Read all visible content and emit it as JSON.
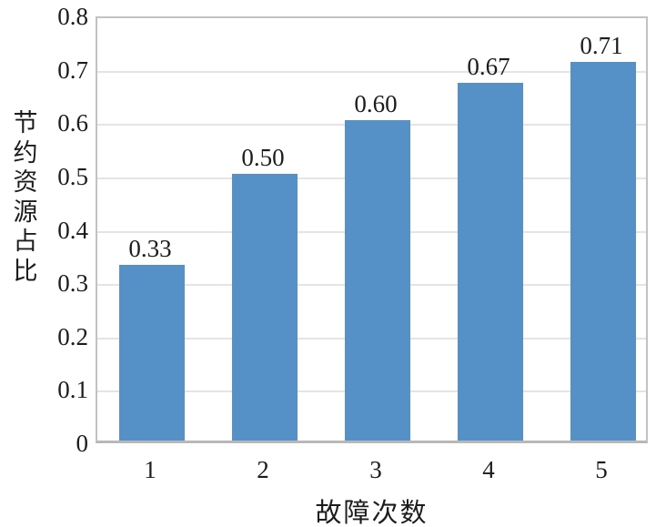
{
  "chart_data": {
    "type": "bar",
    "categories": [
      "1",
      "2",
      "3",
      "4",
      "5"
    ],
    "values": [
      0.33,
      0.5,
      0.6,
      0.67,
      0.71
    ],
    "value_labels": [
      "0.33",
      "0.50",
      "0.60",
      "0.67",
      "0.71"
    ],
    "title": "",
    "xlabel": "故障次数",
    "ylabel": "节约资源占比",
    "ylim": [
      0,
      0.8
    ],
    "ytick_step": 0.1,
    "yticks": [
      0,
      0.1,
      0.2,
      0.3,
      0.4,
      0.5,
      0.6,
      0.7,
      0.8
    ],
    "ytick_labels": [
      "0",
      "0.1",
      "0.2",
      "0.3",
      "0.4",
      "0.5",
      "0.6",
      "0.7",
      "0.8"
    ],
    "grid": "horizontal",
    "legend": "none",
    "bar_color": "#5591c6",
    "grid_color": "#e4e4e4",
    "frame_color": "#c2c2c2",
    "text_color": "#1c1c1c"
  }
}
